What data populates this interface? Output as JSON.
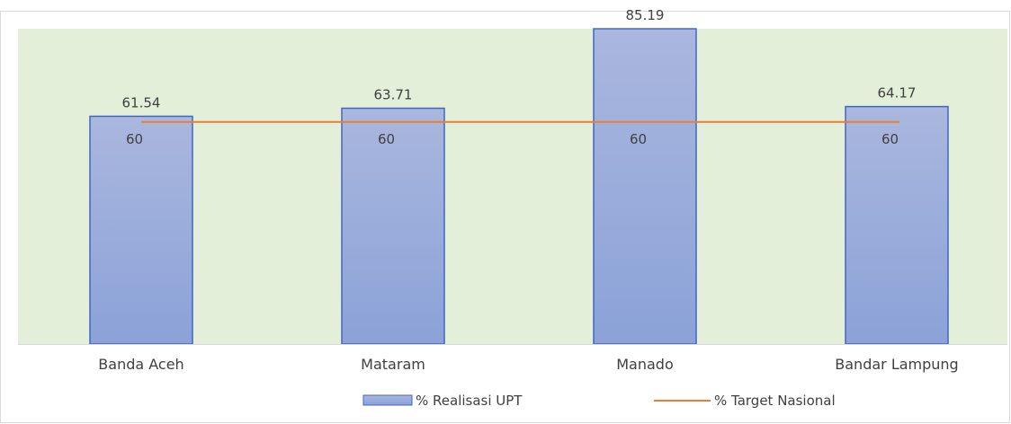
{
  "chart_data": {
    "type": "bar",
    "title": "",
    "xlabel": "",
    "ylabel": "",
    "categories": [
      "Banda Aceh",
      "Mataram",
      "Manado",
      "Bandar Lampung"
    ],
    "series": [
      {
        "name": "% Realisasi UPT",
        "kind": "bar",
        "values": [
          61.54,
          63.71,
          85.19,
          64.17
        ],
        "labels": [
          "61.54",
          "63.71",
          "85.19",
          "64.17"
        ]
      },
      {
        "name": "% Target Nasional",
        "kind": "line",
        "values": [
          60,
          60,
          60,
          60
        ],
        "labels": [
          "60",
          "60",
          "60",
          "60"
        ]
      }
    ],
    "ylim": [
      0,
      90
    ],
    "grid": false,
    "legend": "bottom",
    "colors": {
      "plot_bg": "#e3efd9",
      "bar_fill_top": "#aab7de",
      "bar_fill_bottom": "#8ba2d8",
      "bar_stroke": "#3f66c4",
      "line": "#ed7d31",
      "axis": "#d9d9d9",
      "frame": "#d9d9d9"
    }
  }
}
